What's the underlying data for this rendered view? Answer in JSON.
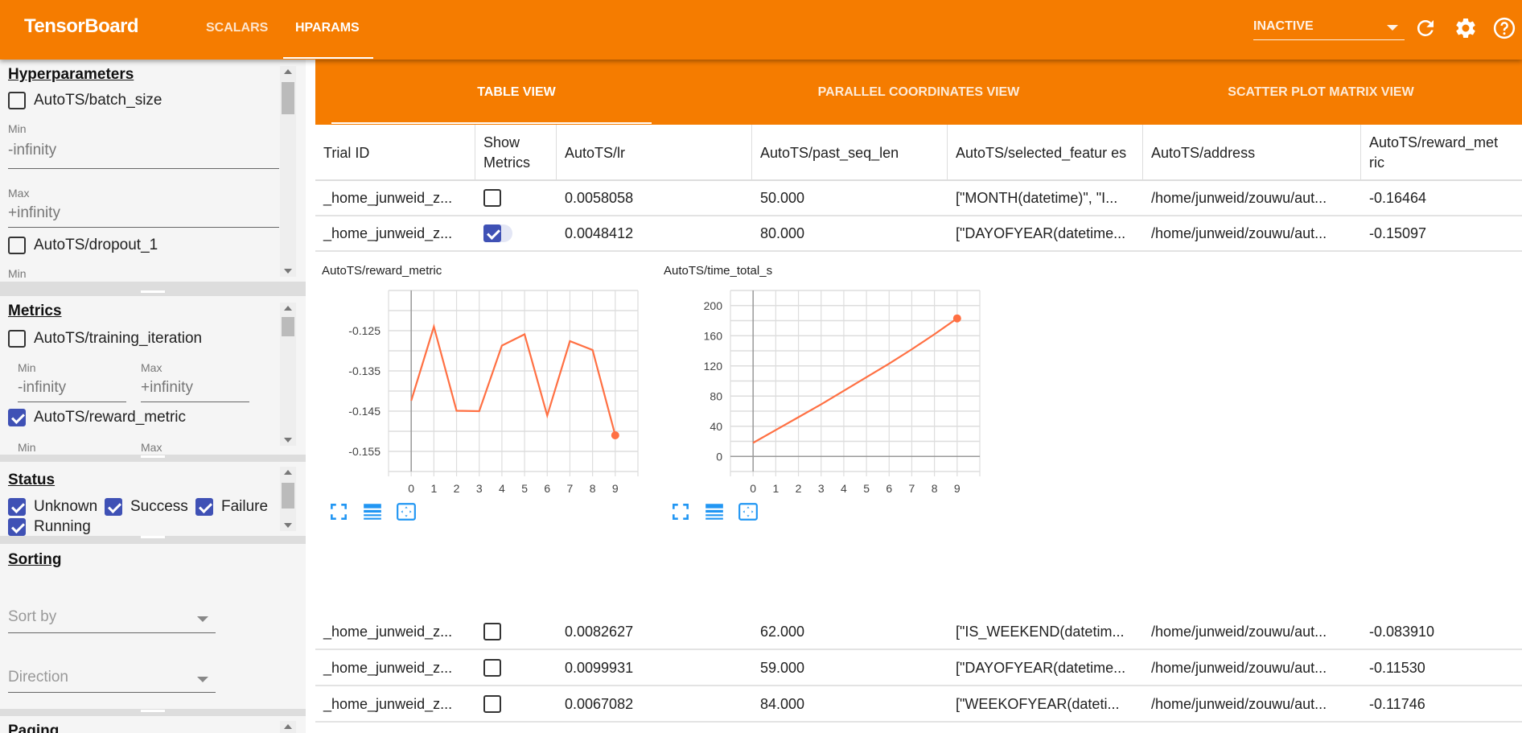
{
  "header": {
    "brand": "TensorBoard",
    "nav": [
      {
        "label": "SCALARS",
        "active": false
      },
      {
        "label": "HPARAMS",
        "active": true
      }
    ],
    "run_selector": "INACTIVE",
    "icons": [
      "refresh-icon",
      "settings-icon",
      "help-icon"
    ],
    "accent": "#f57c00"
  },
  "sidebar": {
    "hyperparameters": {
      "title": "Hyperparameters",
      "items": [
        {
          "label": "AutoTS/batch_size",
          "checked": false,
          "min_label": "Min",
          "min_value": "-infinity",
          "max_label": "Max",
          "max_value": "+infinity"
        },
        {
          "label": "AutoTS/dropout_1",
          "checked": false,
          "min_label": "Min"
        }
      ]
    },
    "metrics": {
      "title": "Metrics",
      "items": [
        {
          "label": "AutoTS/training_iteration",
          "checked": false,
          "min_label": "Min",
          "min_value": "-infinity",
          "max_label": "Max",
          "max_value": "+infinity"
        },
        {
          "label": "AutoTS/reward_metric",
          "checked": true,
          "min_label": "Min",
          "max_label": "Max"
        }
      ]
    },
    "status": {
      "title": "Status",
      "items": [
        {
          "label": "Unknown",
          "checked": true
        },
        {
          "label": "Success",
          "checked": true
        },
        {
          "label": "Failure",
          "checked": true
        },
        {
          "label": "Running",
          "checked": true
        }
      ]
    },
    "sorting": {
      "title": "Sorting",
      "sort_by_placeholder": "Sort by",
      "direction_placeholder": "Direction"
    },
    "paging": {
      "title": "Paging"
    }
  },
  "view_tabs": [
    {
      "label": "TABLE VIEW",
      "active": true
    },
    {
      "label": "PARALLEL COORDINATES VIEW",
      "active": false
    },
    {
      "label": "SCATTER PLOT MATRIX VIEW",
      "active": false
    }
  ],
  "table": {
    "columns": [
      "Trial ID",
      "Show Metrics",
      "AutoTS/lr",
      "AutoTS/past_seq_len",
      "AutoTS/selected_featur es",
      "AutoTS/address",
      "AutoTS/reward_met ric"
    ],
    "rows_before_charts": [
      {
        "trial_id": "_home_junweid_z...",
        "show_metrics": false,
        "lr": "0.0058058",
        "past_seq_len": "50.000",
        "selected_features": "[\"MONTH(datetime)\", \"I...",
        "address": "/home/junweid/zouwu/aut...",
        "reward_metric": "-0.16464"
      },
      {
        "trial_id": "_home_junweid_z...",
        "show_metrics": true,
        "lr": "0.0048412",
        "past_seq_len": "80.000",
        "selected_features": "[\"DAYOFYEAR(datetime...",
        "address": "/home/junweid/zouwu/aut...",
        "reward_metric": "-0.15097"
      }
    ],
    "rows_after_charts": [
      {
        "trial_id": "_home_junweid_z...",
        "show_metrics": false,
        "lr": "0.0082627",
        "past_seq_len": "62.000",
        "selected_features": "[\"IS_WEEKEND(datetim...",
        "address": "/home/junweid/zouwu/aut...",
        "reward_metric": "-0.083910"
      },
      {
        "trial_id": "_home_junweid_z...",
        "show_metrics": false,
        "lr": "0.0099931",
        "past_seq_len": "59.000",
        "selected_features": "[\"DAYOFYEAR(datetime...",
        "address": "/home/junweid/zouwu/aut...",
        "reward_metric": "-0.11530"
      },
      {
        "trial_id": "_home_junweid_z...",
        "show_metrics": false,
        "lr": "0.0067082",
        "past_seq_len": "84.000",
        "selected_features": "[\"WEEKOFYEAR(dateti...",
        "address": "/home/junweid/zouwu/aut...",
        "reward_metric": "-0.11746"
      }
    ]
  },
  "chart_data": [
    {
      "type": "line",
      "title": "AutoTS/reward_metric",
      "x": [
        0,
        1,
        2,
        3,
        4,
        5,
        6,
        7,
        8,
        9
      ],
      "y": [
        -0.1424,
        -0.124,
        -0.1449,
        -0.145,
        -0.1287,
        -0.1259,
        -0.1461,
        -0.1276,
        -0.1298,
        -0.151
      ],
      "xlim": [
        -1,
        10
      ],
      "ylim": [
        -0.16,
        -0.115
      ],
      "x_ticks": [
        "0",
        "1",
        "2",
        "3",
        "4",
        "5",
        "6",
        "7",
        "8",
        "9"
      ],
      "y_ticks": [
        "-0.125",
        "-0.135",
        "-0.145",
        "-0.155"
      ],
      "grid": true,
      "color": "#ff7043"
    },
    {
      "type": "line",
      "title": "AutoTS/time_total_s",
      "x": [
        0,
        1,
        2,
        3,
        4,
        5,
        6,
        7,
        8,
        9
      ],
      "y": [
        18,
        35,
        52,
        69,
        87,
        105,
        123,
        142,
        162,
        183
      ],
      "xlim": [
        -1,
        10
      ],
      "ylim": [
        -20,
        220
      ],
      "x_ticks": [
        "0",
        "1",
        "2",
        "3",
        "4",
        "5",
        "6",
        "7",
        "8",
        "9"
      ],
      "y_ticks": [
        "0",
        "40",
        "80",
        "120",
        "160",
        "200"
      ],
      "grid": true,
      "color": "#ff7043"
    }
  ],
  "chart_controls": [
    "fullscreen-icon",
    "data-table-icon",
    "fit-domain-icon"
  ]
}
